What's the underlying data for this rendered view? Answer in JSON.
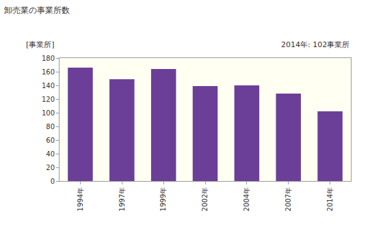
{
  "chart_data": {
    "type": "bar",
    "title": "卸売業の事業所数",
    "y_label": "[事業所]",
    "annotation": "2014年: 102事業所",
    "categories": [
      "1994年",
      "1997年",
      "1999年",
      "2002年",
      "2004年",
      "2007年",
      "2014年"
    ],
    "values": [
      166,
      149,
      164,
      139,
      140,
      128,
      102
    ],
    "color": "#6b3f98",
    "ylim": [
      0,
      180
    ],
    "yticks": [
      0,
      20,
      40,
      60,
      80,
      100,
      120,
      140,
      160,
      180
    ],
    "grid": false
  }
}
